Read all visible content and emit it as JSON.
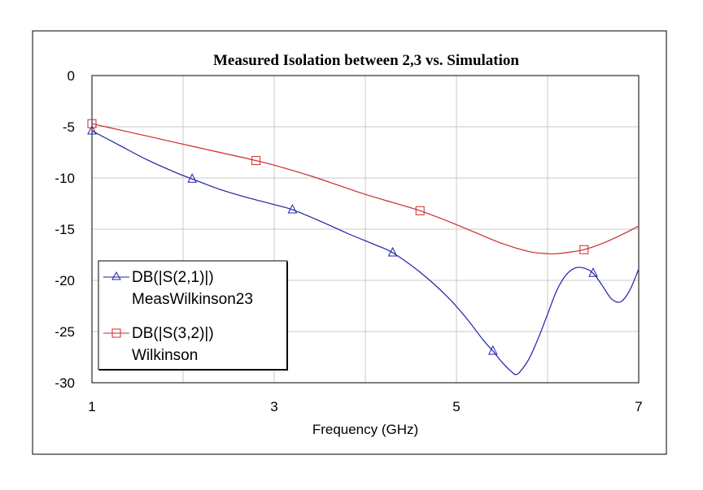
{
  "chart_data": {
    "type": "line",
    "title": "Measured Isolation between 2,3 vs. Simulation",
    "xlabel": "Frequency (GHz)",
    "ylabel": "",
    "xlim": [
      1,
      7
    ],
    "ylim": [
      -30,
      0
    ],
    "x_ticks": [
      1,
      3,
      5,
      7
    ],
    "y_ticks": [
      0,
      -5,
      -10,
      -15,
      -20,
      -25,
      -30
    ],
    "grid": true,
    "legend_position": "bottom-left",
    "series": [
      {
        "name": "DB(|S(2,1)|)",
        "name_line2": "MeasWilkinson23",
        "color": "#1f1fa6",
        "marker": "triangle",
        "x": [
          1.0,
          1.3,
          1.6,
          1.9,
          2.1,
          2.4,
          2.7,
          3.0,
          3.2,
          3.5,
          3.8,
          4.1,
          4.3,
          4.6,
          4.9,
          5.1,
          5.3,
          5.4,
          5.5,
          5.6,
          5.65,
          5.7,
          5.8,
          5.9,
          6.0,
          6.1,
          6.2,
          6.3,
          6.4,
          6.5,
          6.6,
          6.7,
          6.8,
          6.9,
          7.0
        ],
        "y": [
          -5.4,
          -6.8,
          -8.2,
          -9.4,
          -10.1,
          -11.1,
          -11.9,
          -12.6,
          -13.1,
          -14.2,
          -15.4,
          -16.5,
          -17.3,
          -19.2,
          -21.6,
          -23.6,
          -25.9,
          -26.9,
          -28.0,
          -28.9,
          -29.2,
          -28.9,
          -27.6,
          -25.6,
          -23.3,
          -21.0,
          -19.5,
          -18.8,
          -18.8,
          -19.3,
          -20.5,
          -21.8,
          -22.1,
          -21.0,
          -18.9
        ],
        "marker_x": [
          1.0,
          2.1,
          3.2,
          4.3,
          5.4,
          6.5
        ]
      },
      {
        "name": "DB(|S(3,2)|)",
        "name_line2": "Wilkinson",
        "color": "#cc2a2a",
        "marker": "square",
        "x": [
          1.0,
          1.3,
          1.6,
          1.9,
          2.2,
          2.5,
          2.8,
          3.1,
          3.4,
          3.7,
          4.0,
          4.3,
          4.6,
          4.9,
          5.2,
          5.5,
          5.8,
          6.0,
          6.1,
          6.2,
          6.4,
          6.6,
          6.8,
          7.0
        ],
        "y": [
          -4.7,
          -5.3,
          -5.9,
          -6.5,
          -7.1,
          -7.7,
          -8.3,
          -9.0,
          -9.8,
          -10.7,
          -11.6,
          -12.4,
          -13.2,
          -14.2,
          -15.3,
          -16.4,
          -17.2,
          -17.4,
          -17.4,
          -17.3,
          -17.0,
          -16.4,
          -15.6,
          -14.7
        ],
        "marker_x": [
          1.0,
          2.8,
          4.6,
          6.4
        ]
      }
    ]
  }
}
